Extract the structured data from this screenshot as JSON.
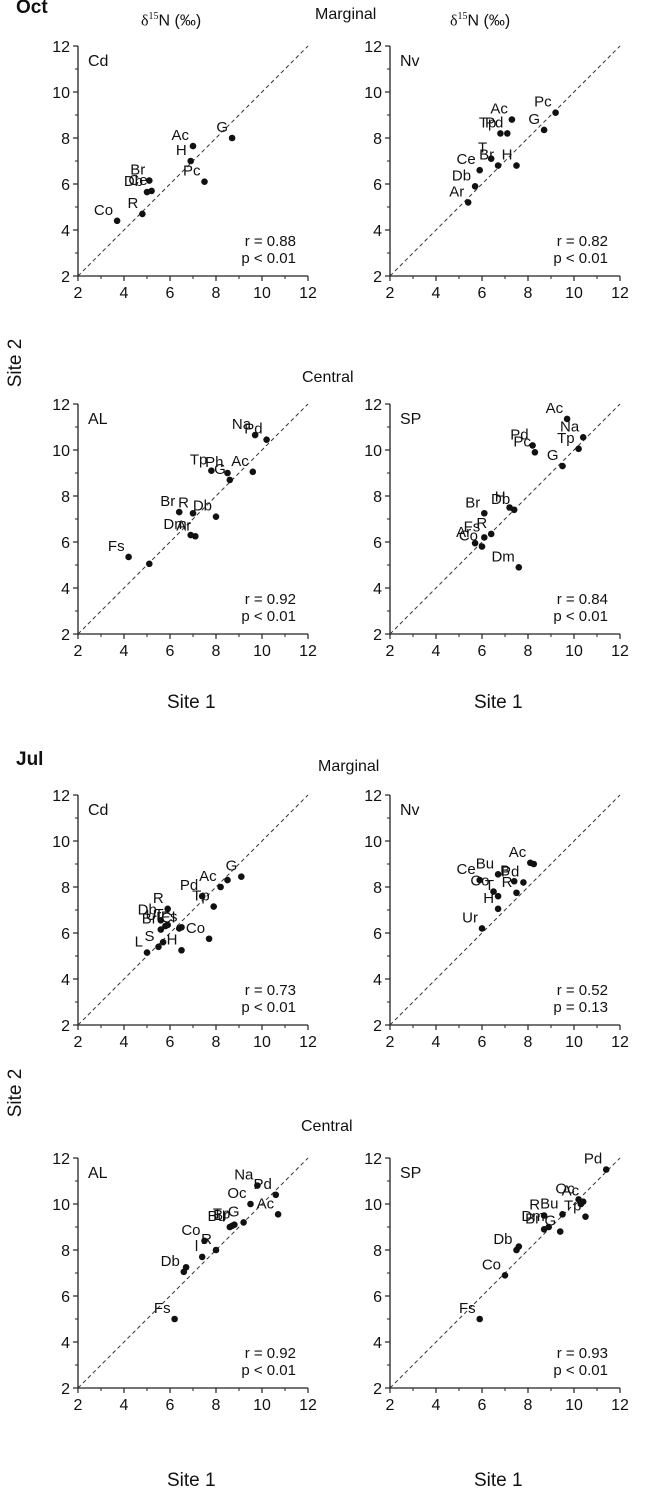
{
  "labels": {
    "oct": "Oct",
    "jul": "Jul",
    "marginal": "Marginal",
    "central": "Central",
    "d15n_base": "δ",
    "d15n_sup": "15",
    "d15n_rest": "N (‰)",
    "site1": "Site 1",
    "site2": "Site 2"
  },
  "chart_data": [
    {
      "type": "scatter",
      "month": "Oct",
      "region": "Marginal",
      "panel_label": "Cd",
      "xlim": [
        2,
        12
      ],
      "ylim": [
        2,
        12
      ],
      "ticks": [
        2,
        4,
        6,
        8,
        10,
        12
      ],
      "stats": [
        "r = 0.88",
        "p < 0.01"
      ],
      "points": [
        {
          "label": "Co",
          "x": 3.7,
          "y": 4.4
        },
        {
          "label": "R",
          "x": 4.8,
          "y": 4.7
        },
        {
          "label": "Db",
          "x": 5.0,
          "y": 5.65
        },
        {
          "label": "Ce",
          "x": 5.2,
          "y": 5.7
        },
        {
          "label": "Br",
          "x": 5.1,
          "y": 6.15
        },
        {
          "label": "Pc",
          "x": 7.5,
          "y": 6.1
        },
        {
          "label": "H",
          "x": 6.9,
          "y": 7.0
        },
        {
          "label": "Ac",
          "x": 7.0,
          "y": 7.65
        },
        {
          "label": "G",
          "x": 8.7,
          "y": 8.0
        }
      ]
    },
    {
      "type": "scatter",
      "month": "Oct",
      "region": "Marginal",
      "panel_label": "Nv",
      "xlim": [
        2,
        12
      ],
      "ylim": [
        2,
        12
      ],
      "ticks": [
        2,
        4,
        6,
        8,
        10,
        12
      ],
      "stats": [
        "r = 0.82",
        "p < 0.01"
      ],
      "points": [
        {
          "label": "Ar",
          "x": 5.4,
          "y": 5.2
        },
        {
          "label": "Db",
          "x": 5.7,
          "y": 5.9
        },
        {
          "label": "Ce",
          "x": 5.9,
          "y": 6.6
        },
        {
          "label": "T",
          "x": 6.4,
          "y": 7.1
        },
        {
          "label": "Br",
          "x": 6.7,
          "y": 6.8
        },
        {
          "label": "H",
          "x": 7.5,
          "y": 6.8
        },
        {
          "label": "Tp",
          "x": 6.8,
          "y": 8.2
        },
        {
          "label": "Pd",
          "x": 7.1,
          "y": 8.2
        },
        {
          "label": "Ac",
          "x": 7.3,
          "y": 8.8
        },
        {
          "label": "G",
          "x": 8.7,
          "y": 8.35
        },
        {
          "label": "Pc",
          "x": 9.2,
          "y": 9.1
        }
      ]
    },
    {
      "type": "scatter",
      "month": "Oct",
      "region": "Central",
      "panel_label": "AL",
      "xlim": [
        2,
        12
      ],
      "ylim": [
        2,
        12
      ],
      "ticks": [
        2,
        4,
        6,
        8,
        10,
        12
      ],
      "stats": [
        "r = 0.92",
        "p < 0.01"
      ],
      "points": [
        {
          "label": "Fs",
          "x": 4.2,
          "y": 5.35
        },
        {
          "label": "",
          "x": 5.1,
          "y": 5.05
        },
        {
          "label": "Dm",
          "x": 6.9,
          "y": 6.3
        },
        {
          "label": "Ar",
          "x": 7.1,
          "y": 6.25
        },
        {
          "label": "Br",
          "x": 6.4,
          "y": 7.3
        },
        {
          "label": "R",
          "x": 7.0,
          "y": 7.25
        },
        {
          "label": "Db",
          "x": 8.0,
          "y": 7.1
        },
        {
          "label": "Tp",
          "x": 7.8,
          "y": 9.1
        },
        {
          "label": "Ph",
          "x": 8.5,
          "y": 9.0
        },
        {
          "label": "G",
          "x": 8.6,
          "y": 8.7
        },
        {
          "label": "Ac",
          "x": 9.6,
          "y": 9.05
        },
        {
          "label": "Na",
          "x": 9.7,
          "y": 10.65
        },
        {
          "label": "Pd",
          "x": 10.2,
          "y": 10.45
        }
      ]
    },
    {
      "type": "scatter",
      "month": "Oct",
      "region": "Central",
      "panel_label": "SP",
      "xlim": [
        2,
        12
      ],
      "ylim": [
        2,
        12
      ],
      "ticks": [
        2,
        4,
        6,
        8,
        10,
        12
      ],
      "stats": [
        "r = 0.84",
        "p < 0.01"
      ],
      "points": [
        {
          "label": "Ar",
          "x": 5.7,
          "y": 5.95
        },
        {
          "label": "Co",
          "x": 6.0,
          "y": 5.8
        },
        {
          "label": "Fs",
          "x": 6.1,
          "y": 6.2
        },
        {
          "label": "R",
          "x": 6.4,
          "y": 6.35
        },
        {
          "label": "Br",
          "x": 6.1,
          "y": 7.25
        },
        {
          "label": "H",
          "x": 7.2,
          "y": 7.5
        },
        {
          "label": "Db",
          "x": 7.4,
          "y": 7.4
        },
        {
          "label": "Dm",
          "x": 7.6,
          "y": 4.9
        },
        {
          "label": "Pd",
          "x": 8.2,
          "y": 10.2
        },
        {
          "label": "Pc",
          "x": 8.3,
          "y": 9.9
        },
        {
          "label": "G",
          "x": 9.5,
          "y": 9.3
        },
        {
          "label": "Tp",
          "x": 10.2,
          "y": 10.05
        },
        {
          "label": "Na",
          "x": 10.4,
          "y": 10.55
        },
        {
          "label": "Ac",
          "x": 9.7,
          "y": 11.35
        }
      ]
    },
    {
      "type": "scatter",
      "month": "Jul",
      "region": "Marginal",
      "panel_label": "Cd",
      "xlim": [
        2,
        12
      ],
      "ylim": [
        2,
        12
      ],
      "ticks": [
        2,
        4,
        6,
        8,
        10,
        12
      ],
      "stats": [
        "r = 0.73",
        "p < 0.01"
      ],
      "points": [
        {
          "label": "L",
          "x": 5.0,
          "y": 5.15
        },
        {
          "label": "S",
          "x": 5.5,
          "y": 5.4
        },
        {
          "label": "",
          "x": 5.7,
          "y": 5.6
        },
        {
          "label": "Br",
          "x": 5.6,
          "y": 6.15
        },
        {
          "label": "Db",
          "x": 5.6,
          "y": 6.55
        },
        {
          "label": "Ur",
          "x": 5.8,
          "y": 6.3
        },
        {
          "label": "T",
          "x": 5.9,
          "y": 6.35
        },
        {
          "label": "Cl",
          "x": 6.4,
          "y": 6.2
        },
        {
          "label": "Fs",
          "x": 6.5,
          "y": 6.25
        },
        {
          "label": "R",
          "x": 5.9,
          "y": 7.05
        },
        {
          "label": "H",
          "x": 6.5,
          "y": 5.25
        },
        {
          "label": "Co",
          "x": 7.7,
          "y": 5.75
        },
        {
          "label": "Pd",
          "x": 7.4,
          "y": 7.6
        },
        {
          "label": "Tp",
          "x": 7.9,
          "y": 7.15
        },
        {
          "label": "Ac",
          "x": 8.2,
          "y": 8.0
        },
        {
          "label": "",
          "x": 8.5,
          "y": 8.3
        },
        {
          "label": "G",
          "x": 9.1,
          "y": 8.45
        }
      ]
    },
    {
      "type": "scatter",
      "month": "Jul",
      "region": "Marginal",
      "panel_label": "Nv",
      "xlim": [
        2,
        12
      ],
      "ylim": [
        2,
        12
      ],
      "ticks": [
        2,
        4,
        6,
        8,
        10,
        12
      ],
      "stats": [
        "r = 0.52",
        "p = 0.13"
      ],
      "points": [
        {
          "label": "Ur",
          "x": 6.0,
          "y": 6.2
        },
        {
          "label": "H",
          "x": 6.7,
          "y": 7.05
        },
        {
          "label": "Ce",
          "x": 5.9,
          "y": 8.3
        },
        {
          "label": "Co",
          "x": 6.5,
          "y": 7.8
        },
        {
          "label": "T",
          "x": 6.7,
          "y": 7.6
        },
        {
          "label": "Bu",
          "x": 6.7,
          "y": 8.55
        },
        {
          "label": "B",
          "x": 7.4,
          "y": 8.25
        },
        {
          "label": "R",
          "x": 7.5,
          "y": 7.75
        },
        {
          "label": "Pd",
          "x": 7.8,
          "y": 8.2
        },
        {
          "label": "Ac",
          "x": 8.1,
          "y": 9.05
        },
        {
          "label": "",
          "x": 8.25,
          "y": 9.0
        }
      ]
    },
    {
      "type": "scatter",
      "month": "Jul",
      "region": "Central",
      "panel_label": "AL",
      "xlim": [
        2,
        12
      ],
      "ylim": [
        2,
        12
      ],
      "ticks": [
        2,
        4,
        6,
        8,
        10,
        12
      ],
      "stats": [
        "r = 0.92",
        "p < 0.01"
      ],
      "points": [
        {
          "label": "Fs",
          "x": 6.2,
          "y": 5.0
        },
        {
          "label": "Db",
          "x": 6.6,
          "y": 7.05
        },
        {
          "label": "",
          "x": 6.7,
          "y": 7.25
        },
        {
          "label": "l",
          "x": 7.4,
          "y": 7.7
        },
        {
          "label": "Co",
          "x": 7.5,
          "y": 8.4
        },
        {
          "label": "R",
          "x": 8.0,
          "y": 8.0
        },
        {
          "label": "Bu",
          "x": 8.6,
          "y": 9.0
        },
        {
          "label": "Br",
          "x": 8.7,
          "y": 9.05
        },
        {
          "label": "Tp",
          "x": 8.8,
          "y": 9.1
        },
        {
          "label": "G",
          "x": 9.2,
          "y": 9.2
        },
        {
          "label": "Oc",
          "x": 9.5,
          "y": 10.0
        },
        {
          "label": "Na",
          "x": 9.8,
          "y": 10.8
        },
        {
          "label": "Pd",
          "x": 10.6,
          "y": 10.4
        },
        {
          "label": "Ac",
          "x": 10.7,
          "y": 9.55
        }
      ]
    },
    {
      "type": "scatter",
      "month": "Jul",
      "region": "Central",
      "panel_label": "SP",
      "xlim": [
        2,
        12
      ],
      "ylim": [
        2,
        12
      ],
      "ticks": [
        2,
        4,
        6,
        8,
        10,
        12
      ],
      "stats": [
        "r = 0.93",
        "p < 0.01"
      ],
      "points": [
        {
          "label": "Fs",
          "x": 5.9,
          "y": 5.0
        },
        {
          "label": "Co",
          "x": 7.0,
          "y": 6.9
        },
        {
          "label": "Db",
          "x": 7.5,
          "y": 8.0
        },
        {
          "label": "",
          "x": 7.6,
          "y": 8.15
        },
        {
          "label": "Br",
          "x": 8.7,
          "y": 8.9
        },
        {
          "label": "R",
          "x": 8.7,
          "y": 9.5
        },
        {
          "label": "Dm",
          "x": 8.9,
          "y": 9.0
        },
        {
          "label": "G",
          "x": 9.4,
          "y": 8.8
        },
        {
          "label": "Bu",
          "x": 9.5,
          "y": 9.55
        },
        {
          "label": "Oc",
          "x": 10.2,
          "y": 10.2
        },
        {
          "label": "",
          "x": 10.3,
          "y": 10.0
        },
        {
          "label": "Ac",
          "x": 10.4,
          "y": 10.1
        },
        {
          "label": "Tp",
          "x": 10.5,
          "y": 9.45
        },
        {
          "label": "Pd",
          "x": 11.4,
          "y": 11.5
        }
      ]
    }
  ]
}
